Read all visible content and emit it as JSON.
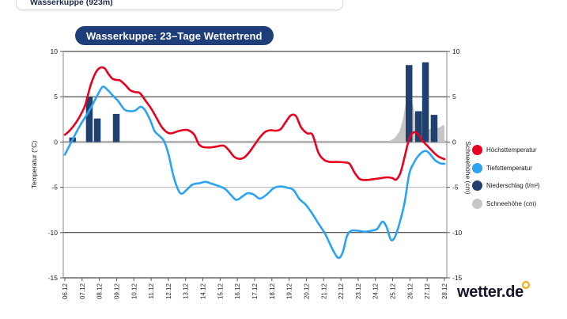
{
  "location_selector": {
    "value": "Wasserkuppe (923m)"
  },
  "title_badge": "Wasserkuppe: 23–Tage Wettertrend",
  "brand": {
    "logo_text": "wetter.de",
    "sun_color": "#f7a600"
  },
  "legend": {
    "items": [
      {
        "label": "Höchsttemperatur",
        "color": "#e8001f",
        "marker": "circle-icon"
      },
      {
        "label": "Tiefsttemperatur",
        "color": "#29a3f2",
        "marker": "circle-icon"
      },
      {
        "label": "Niederschlag (l/m²)",
        "color": "#20416f",
        "marker": "circle-icon"
      },
      {
        "label": "Schneehöhe (cm)",
        "color": "#c6c6c6",
        "marker": "circle-icon"
      }
    ]
  },
  "chart_data": {
    "type": "line",
    "title": "Wasserkuppe: 23–Tage Wettertrend",
    "categories": [
      "06.12",
      "07.12",
      "08.12",
      "09.12",
      "10.12",
      "11.12",
      "12.12",
      "13.12",
      "14.12",
      "15.12",
      "16.12",
      "17.12",
      "18.12",
      "19.12",
      "20.12",
      "21.12",
      "22.12",
      "23.12",
      "24.12",
      "25.12",
      "26.12",
      "27.12",
      "28.12"
    ],
    "y_axis_left": {
      "label": "Temperatur (°C)",
      "ticks": [
        10,
        5,
        0,
        -5,
        -10,
        -15
      ],
      "range": [
        -15,
        10
      ]
    },
    "y_axis_right": {
      "label": "Schneehöhe (cm)",
      "ticks": [
        10,
        5,
        0,
        -5,
        -10,
        -15
      ],
      "range": [
        -15,
        10
      ]
    },
    "legend_position": "right",
    "grid": "horizontal-only",
    "series": [
      {
        "name": "Höchsttemperatur",
        "type": "line",
        "unit": "°C",
        "color": "#e8001f",
        "daily_values": [
          0.8,
          3.4,
          8.1,
          6.9,
          5.5,
          3.7,
          1.0,
          1.3,
          -0.6,
          -0.5,
          -1.8,
          -0.3,
          1.3,
          2.9,
          1.0,
          -2.1,
          -2.2,
          -4.1,
          -4.1,
          -4.0,
          0.5,
          -0.4,
          -1.9
        ],
        "path_points": [
          [
            0,
            0.8
          ],
          [
            0.3,
            1.3
          ],
          [
            0.7,
            2.3
          ],
          [
            1,
            3.3
          ],
          [
            1.2,
            4.2
          ],
          [
            1.5,
            6.3
          ],
          [
            1.8,
            7.7
          ],
          [
            2.05,
            8.2
          ],
          [
            2.3,
            8.15
          ],
          [
            2.5,
            7.6
          ],
          [
            2.75,
            7.0
          ],
          [
            3.0,
            6.85
          ],
          [
            3.2,
            6.8
          ],
          [
            3.5,
            6.3
          ],
          [
            3.8,
            5.7
          ],
          [
            4.1,
            5.5
          ],
          [
            4.35,
            5.4
          ],
          [
            4.7,
            4.5
          ],
          [
            5.0,
            3.7
          ],
          [
            5.3,
            2.7
          ],
          [
            5.6,
            1.7
          ],
          [
            5.9,
            1.1
          ],
          [
            6.15,
            0.95
          ],
          [
            6.5,
            1.15
          ],
          [
            6.8,
            1.3
          ],
          [
            7.15,
            1.3
          ],
          [
            7.5,
            0.8
          ],
          [
            7.75,
            -0.2
          ],
          [
            8.0,
            -0.55
          ],
          [
            8.4,
            -0.6
          ],
          [
            8.8,
            -0.5
          ],
          [
            9.2,
            -0.4
          ],
          [
            9.5,
            -0.9
          ],
          [
            9.8,
            -1.6
          ],
          [
            10.1,
            -1.85
          ],
          [
            10.4,
            -1.7
          ],
          [
            10.7,
            -1.1
          ],
          [
            11,
            -0.3
          ],
          [
            11.3,
            0.5
          ],
          [
            11.6,
            1.1
          ],
          [
            11.9,
            1.3
          ],
          [
            12.2,
            1.25
          ],
          [
            12.5,
            1.4
          ],
          [
            12.8,
            2.2
          ],
          [
            13.1,
            2.95
          ],
          [
            13.4,
            2.85
          ],
          [
            13.7,
            1.6
          ],
          [
            14.05,
            0.95
          ],
          [
            14.35,
            0.8
          ],
          [
            14.7,
            -1.2
          ],
          [
            15.05,
            -2.0
          ],
          [
            15.4,
            -2.2
          ],
          [
            15.8,
            -2.2
          ],
          [
            16.2,
            -2.25
          ],
          [
            16.5,
            -2.4
          ],
          [
            16.8,
            -3.4
          ],
          [
            17.1,
            -4.1
          ],
          [
            17.5,
            -4.2
          ],
          [
            17.9,
            -4.1
          ],
          [
            18.3,
            -4.0
          ],
          [
            18.7,
            -3.9
          ],
          [
            19.0,
            -4.0
          ],
          [
            19.2,
            -4.15
          ],
          [
            19.45,
            -3.4
          ],
          [
            19.7,
            -1.6
          ],
          [
            19.95,
            0.3
          ],
          [
            20.2,
            1.05
          ],
          [
            20.45,
            0.9
          ],
          [
            20.75,
            0.1
          ],
          [
            21.05,
            -0.5
          ],
          [
            21.35,
            -1.1
          ],
          [
            21.65,
            -1.6
          ],
          [
            22,
            -1.9
          ]
        ]
      },
      {
        "name": "Tiefsttemperatur",
        "type": "line",
        "unit": "°C",
        "color": "#29a3f2",
        "daily_values": [
          -1.4,
          2.2,
          5.7,
          4.6,
          3.4,
          2.0,
          -1.3,
          -5.3,
          -4.4,
          -4.9,
          -6.2,
          -5.8,
          -5.1,
          -5.3,
          -6.9,
          -10.2,
          -12.3,
          -9.8,
          -9.6,
          -10.8,
          -3.6,
          -1.2,
          -2.4
        ],
        "path_points": [
          [
            0,
            -1.4
          ],
          [
            0.35,
            -0.1
          ],
          [
            0.7,
            1.2
          ],
          [
            1,
            2.2
          ],
          [
            1.3,
            3.1
          ],
          [
            1.6,
            4.1
          ],
          [
            1.9,
            5.2
          ],
          [
            2.2,
            6.1
          ],
          [
            2.5,
            5.7
          ],
          [
            2.8,
            5.1
          ],
          [
            3.1,
            4.5
          ],
          [
            3.45,
            3.6
          ],
          [
            3.8,
            3.4
          ],
          [
            4.1,
            3.5
          ],
          [
            4.4,
            3.9
          ],
          [
            4.65,
            3.5
          ],
          [
            4.95,
            2.4
          ],
          [
            5.2,
            1.2
          ],
          [
            5.5,
            0.65
          ],
          [
            5.75,
            0.1
          ],
          [
            6.0,
            -1.3
          ],
          [
            6.3,
            -3.8
          ],
          [
            6.6,
            -5.4
          ],
          [
            6.8,
            -5.7
          ],
          [
            7.05,
            -5.3
          ],
          [
            7.4,
            -4.7
          ],
          [
            7.8,
            -4.55
          ],
          [
            8.15,
            -4.4
          ],
          [
            8.5,
            -4.6
          ],
          [
            8.9,
            -4.85
          ],
          [
            9.3,
            -5.2
          ],
          [
            9.65,
            -5.9
          ],
          [
            9.95,
            -6.4
          ],
          [
            10.3,
            -6.0
          ],
          [
            10.6,
            -5.65
          ],
          [
            10.95,
            -5.8
          ],
          [
            11.3,
            -6.25
          ],
          [
            11.7,
            -5.8
          ],
          [
            12.1,
            -5.1
          ],
          [
            12.5,
            -4.9
          ],
          [
            12.9,
            -5.05
          ],
          [
            13.25,
            -5.3
          ],
          [
            13.6,
            -6.3
          ],
          [
            13.95,
            -6.9
          ],
          [
            14.3,
            -7.8
          ],
          [
            14.7,
            -9.0
          ],
          [
            15.1,
            -10.2
          ],
          [
            15.5,
            -11.8
          ],
          [
            15.85,
            -12.8
          ],
          [
            16.1,
            -12.2
          ],
          [
            16.35,
            -10.4
          ],
          [
            16.6,
            -9.8
          ],
          [
            17,
            -9.8
          ],
          [
            17.4,
            -9.9
          ],
          [
            17.75,
            -9.8
          ],
          [
            18.1,
            -9.6
          ],
          [
            18.4,
            -8.8
          ],
          [
            18.65,
            -9.4
          ],
          [
            18.9,
            -10.8
          ],
          [
            19.15,
            -10.4
          ],
          [
            19.45,
            -8.6
          ],
          [
            19.7,
            -6.6
          ],
          [
            19.95,
            -3.6
          ],
          [
            20.2,
            -2.4
          ],
          [
            20.5,
            -1.5
          ],
          [
            20.85,
            -1.0
          ],
          [
            21.1,
            -1.2
          ],
          [
            21.45,
            -2.0
          ],
          [
            21.75,
            -2.35
          ],
          [
            22,
            -2.4
          ]
        ]
      },
      {
        "name": "Niederschlag (l/m²)",
        "type": "bar",
        "unit": "l/m²",
        "color": "#20416f",
        "bars": [
          {
            "date": "06.12",
            "day": 0.45,
            "value": 0.5
          },
          {
            "date": "07.12",
            "day": 1.42,
            "value": 5.0
          },
          {
            "date": "08.12",
            "day": 1.88,
            "value": 2.6
          },
          {
            "date": "09.12",
            "day": 2.98,
            "value": 3.1
          },
          {
            "date": "26.12",
            "day": 19.95,
            "value": 8.5
          },
          {
            "date": "26.12",
            "day": 20.5,
            "value": 3.4
          },
          {
            "date": "27.12",
            "day": 20.9,
            "value": 8.8
          },
          {
            "date": "27.12",
            "day": 21.4,
            "value": 3.0
          }
        ]
      },
      {
        "name": "Schneehöhe (cm)",
        "type": "area",
        "unit": "cm",
        "color": "#c6c6c6",
        "path_points": [
          [
            0,
            0
          ],
          [
            18.55,
            0
          ],
          [
            18.8,
            0.1
          ],
          [
            19.1,
            0.4
          ],
          [
            19.4,
            1.2
          ],
          [
            19.6,
            2.5
          ],
          [
            19.8,
            4.8
          ],
          [
            19.97,
            5.9
          ],
          [
            20.15,
            4.3
          ],
          [
            20.35,
            2.6
          ],
          [
            20.55,
            1.7
          ],
          [
            20.8,
            1.45
          ],
          [
            21.1,
            1.4
          ],
          [
            21.4,
            1.5
          ],
          [
            21.7,
            1.6
          ],
          [
            21.9,
            1.85
          ],
          [
            22,
            1.85
          ]
        ]
      }
    ]
  }
}
